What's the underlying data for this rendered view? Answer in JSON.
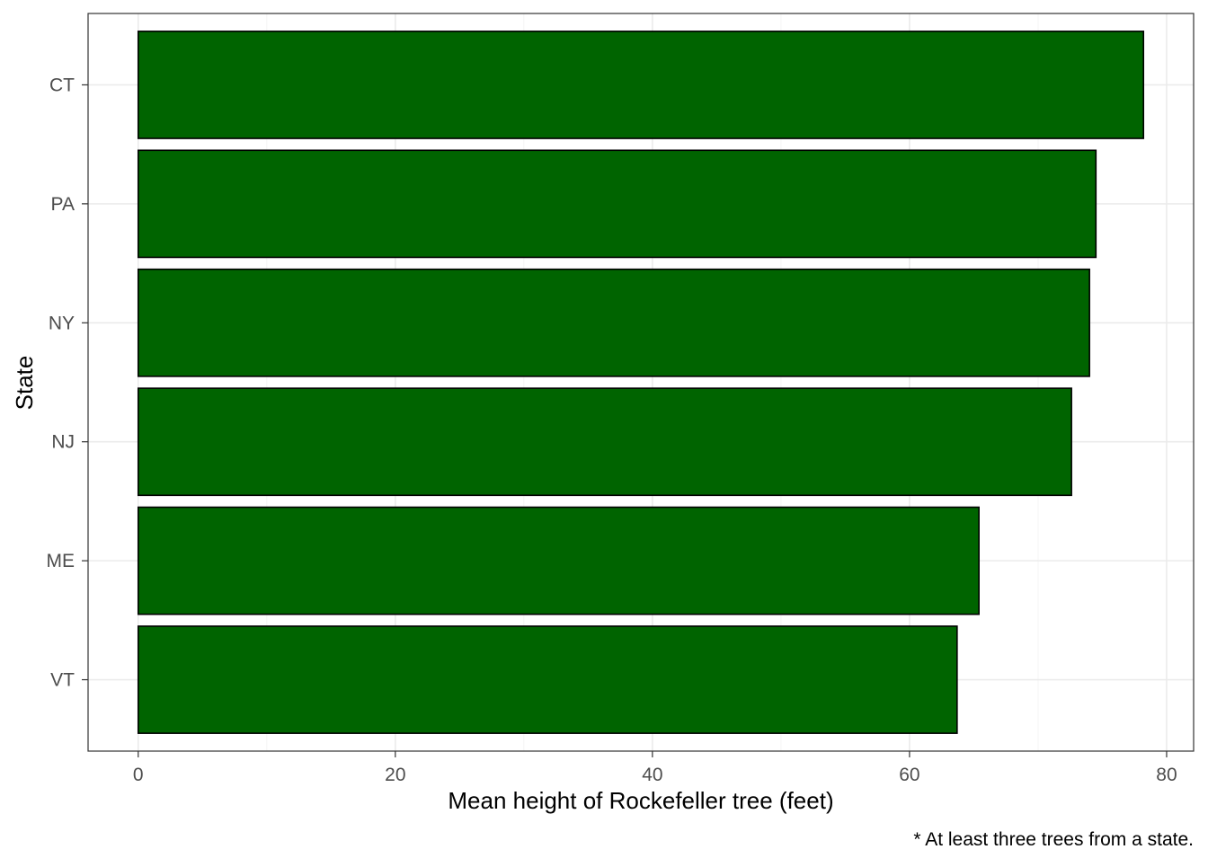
{
  "chart_data": {
    "type": "bar",
    "orientation": "horizontal",
    "categories": [
      "CT",
      "PA",
      "NY",
      "NJ",
      "ME",
      "VT"
    ],
    "values": [
      78.2,
      74.5,
      74.0,
      72.6,
      65.4,
      63.7
    ],
    "xlabel": "Mean height of Rockefeller tree (feet)",
    "ylabel": "State",
    "xlim": [
      -3.9,
      82.1
    ],
    "xticks": [
      0,
      20,
      40,
      60,
      80
    ],
    "grid": true,
    "caption": "* At least three trees from a state.",
    "colors": {
      "bar_fill": "#006400",
      "bar_stroke": "#000000",
      "grid_major": "#ebebeb",
      "grid_minor": "#f5f5f5",
      "panel_border": "#333333",
      "tick_text": "#4d4d4d"
    }
  }
}
